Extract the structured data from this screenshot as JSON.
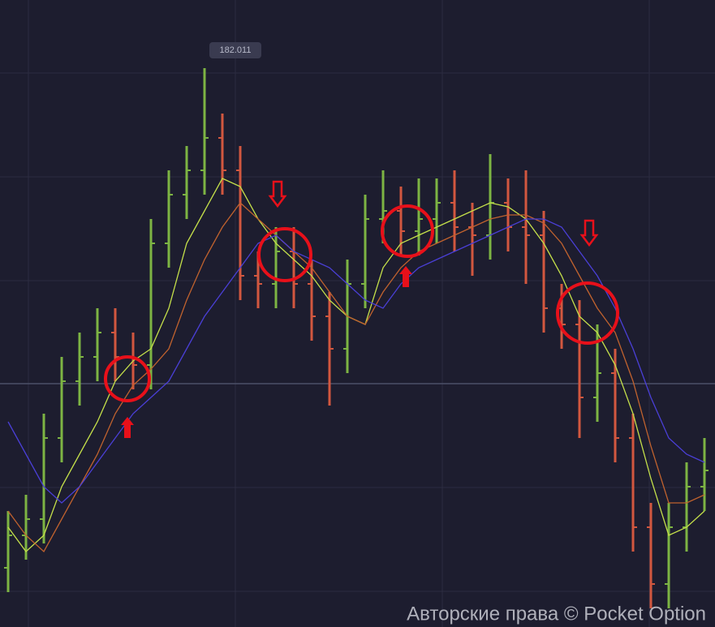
{
  "chart_data": {
    "type": "ohlc",
    "categories": [
      null,
      null,
      null,
      null,
      null,
      null,
      null,
      null,
      null,
      null,
      null,
      null,
      null,
      null,
      null,
      null,
      null,
      null,
      null,
      null,
      null,
      null,
      null,
      null,
      null,
      null,
      null,
      null,
      null,
      null,
      null,
      null,
      null,
      null,
      null,
      null,
      null,
      null,
      null,
      null
    ],
    "open": [
      181.395,
      181.435,
      181.455,
      181.555,
      181.625,
      181.655,
      181.685,
      181.655,
      181.645,
      181.795,
      181.855,
      181.885,
      181.925,
      181.885,
      181.755,
      181.745,
      181.785,
      181.745,
      181.705,
      181.665,
      181.745,
      181.825,
      181.835,
      181.81,
      181.825,
      181.845,
      181.815,
      181.805,
      181.845,
      181.815,
      181.805,
      181.715,
      181.695,
      181.605,
      181.635,
      181.555,
      181.445,
      181.375,
      181.445,
      181.495
    ],
    "high": [
      181.465,
      181.485,
      181.585,
      181.655,
      181.685,
      181.715,
      181.715,
      181.685,
      181.825,
      181.885,
      181.915,
      182.011,
      181.955,
      181.915,
      181.785,
      181.815,
      181.815,
      181.775,
      181.735,
      181.775,
      181.855,
      181.885,
      181.865,
      181.875,
      181.875,
      181.885,
      181.845,
      181.905,
      181.875,
      181.885,
      181.835,
      181.745,
      181.725,
      181.695,
      181.665,
      181.585,
      181.475,
      181.475,
      181.525,
      181.555
    ],
    "low": [
      181.365,
      181.405,
      181.425,
      181.525,
      181.595,
      181.625,
      181.625,
      181.615,
      181.615,
      181.765,
      181.825,
      181.855,
      181.855,
      181.725,
      181.715,
      181.715,
      181.715,
      181.675,
      181.595,
      181.635,
      181.715,
      181.795,
      181.78,
      181.78,
      181.795,
      181.785,
      181.755,
      181.775,
      181.785,
      181.745,
      181.685,
      181.665,
      181.555,
      181.575,
      181.525,
      181.415,
      181.345,
      181.345,
      181.415,
      181.465
    ],
    "close": [
      181.435,
      181.455,
      181.555,
      181.625,
      181.655,
      181.685,
      181.655,
      181.645,
      181.795,
      181.855,
      181.885,
      181.925,
      181.885,
      181.755,
      181.745,
      181.785,
      181.745,
      181.705,
      181.665,
      181.745,
      181.825,
      181.835,
      181.81,
      181.825,
      181.845,
      181.815,
      181.805,
      181.845,
      181.815,
      181.805,
      181.715,
      181.695,
      181.605,
      181.635,
      181.555,
      181.445,
      181.375,
      181.445,
      181.495,
      181.515
    ],
    "up_color": "#7db443",
    "down_color": "#d2573f",
    "lines": [
      {
        "color": "#c5e04a",
        "values": [
          181.445,
          181.415,
          181.435,
          181.495,
          181.535,
          181.575,
          181.625,
          181.65,
          181.665,
          181.715,
          181.795,
          181.835,
          181.875,
          181.865,
          181.825,
          181.795,
          181.775,
          181.755,
          181.725,
          181.705,
          181.695,
          181.765,
          181.795,
          181.805,
          181.815,
          181.825,
          181.835,
          181.845,
          181.84,
          181.825,
          181.795,
          181.755,
          181.705,
          181.685,
          181.645,
          181.585,
          181.505,
          181.435,
          181.445,
          181.465
        ]
      },
      {
        "color": "#c0622e",
        "values": [
          181.465,
          181.435,
          181.415,
          181.455,
          181.495,
          181.535,
          181.585,
          181.62,
          181.64,
          181.665,
          181.725,
          181.775,
          181.815,
          181.845,
          181.825,
          181.805,
          181.785,
          181.765,
          181.735,
          181.705,
          181.695,
          181.735,
          181.765,
          181.785,
          181.795,
          181.805,
          181.815,
          181.825,
          181.83,
          181.83,
          181.82,
          181.795,
          181.755,
          181.715,
          181.685,
          181.625,
          181.545,
          181.475,
          181.475,
          181.485
        ]
      },
      {
        "color": "#4a3fd6",
        "values": [
          181.575,
          181.535,
          181.495,
          181.475,
          181.495,
          181.525,
          181.555,
          181.585,
          181.605,
          181.625,
          181.665,
          181.705,
          181.735,
          181.765,
          181.795,
          181.805,
          181.785,
          181.775,
          181.765,
          181.745,
          181.725,
          181.715,
          181.745,
          181.765,
          181.775,
          181.785,
          181.795,
          181.805,
          181.815,
          181.825,
          181.825,
          181.815,
          181.785,
          181.755,
          181.715,
          181.665,
          181.605,
          181.555,
          181.535,
          181.525
        ]
      }
    ],
    "price_line": 181.622,
    "ylim": [
      181.322,
      182.095
    ],
    "watermark": "Авторские права © Pocket Option"
  }
}
